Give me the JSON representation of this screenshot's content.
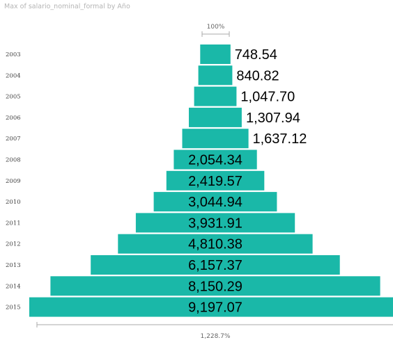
{
  "chart_data": {
    "type": "bar",
    "orientation": "funnel",
    "title": "Max of salario_nominal_formal by Año",
    "categories": [
      "2003",
      "2004",
      "2005",
      "2006",
      "2007",
      "2008",
      "2009",
      "2010",
      "2011",
      "2012",
      "2013",
      "2014",
      "2015"
    ],
    "values": [
      748.54,
      840.82,
      1047.7,
      1307.94,
      1637.12,
      2054.34,
      2419.57,
      3044.94,
      3931.91,
      4810.38,
      6157.37,
      8150.29,
      9197.07
    ],
    "value_labels": [
      "748.54",
      "840.82",
      "1,047.70",
      "1,307.94",
      "1,637.12",
      "2,054.34",
      "2,419.57",
      "3,044.94",
      "3,931.91",
      "4,810.38",
      "6,157.37",
      "8,150.29",
      "9,197.07"
    ],
    "top_reference_label": "100%",
    "bottom_reference_label": "1,228.7%",
    "bar_color": "#1ab8a8"
  }
}
